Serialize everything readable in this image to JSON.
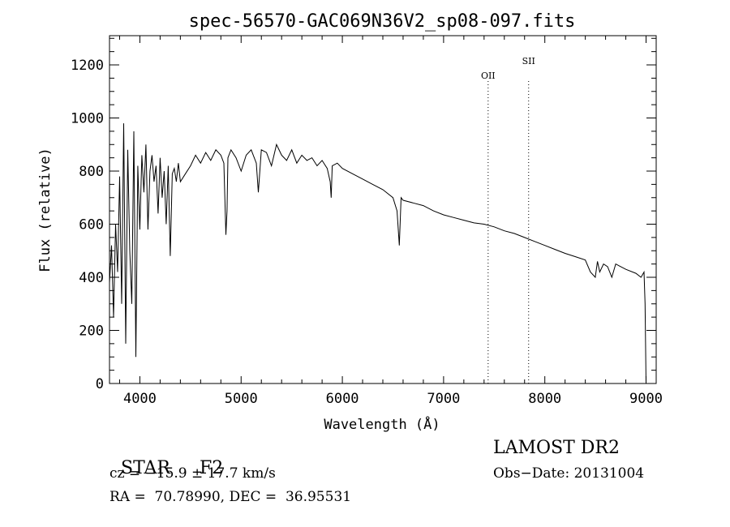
{
  "chart_data": {
    "type": "line",
    "title": "spec-56570-GAC069N36V2_sp08-097.fits",
    "xlabel": "Wavelength (Å)",
    "ylabel": "Flux (relative)",
    "xlim": [
      3700,
      9100
    ],
    "ylim": [
      0,
      1310
    ],
    "x_ticks": [
      4000,
      5000,
      6000,
      7000,
      8000,
      9000
    ],
    "y_ticks": [
      0,
      200,
      400,
      600,
      800,
      1000,
      1200
    ],
    "line_color": "#000000",
    "series": [
      {
        "x": [
          3700,
          3720,
          3740,
          3760,
          3780,
          3800,
          3820,
          3840,
          3860,
          3880,
          3900,
          3920,
          3940,
          3960,
          3980,
          4000,
          4020,
          4040,
          4060,
          4080,
          4100,
          4120,
          4140,
          4160,
          4180,
          4200,
          4220,
          4240,
          4260,
          4280,
          4300,
          4320,
          4340,
          4360,
          4380,
          4400,
          4450,
          4500,
          4550,
          4600,
          4650,
          4700,
          4750,
          4800,
          4830,
          4850,
          4861,
          4870,
          4900,
          4950,
          5000,
          5050,
          5100,
          5150,
          5170,
          5200,
          5250,
          5300,
          5350,
          5400,
          5450,
          5500,
          5550,
          5600,
          5650,
          5700,
          5750,
          5800,
          5850,
          5880,
          5890,
          5900,
          5950,
          6000,
          6100,
          6200,
          6300,
          6400,
          6500,
          6540,
          6563,
          6580,
          6600,
          6700,
          6800,
          6900,
          7000,
          7100,
          7200,
          7300,
          7400,
          7500,
          7600,
          7700,
          7800,
          7900,
          8000,
          8100,
          8200,
          8300,
          8400,
          8450,
          8498,
          8520,
          8542,
          8580,
          8620,
          8662,
          8700,
          8800,
          8900,
          8950,
          8980,
          8990,
          9000
        ],
        "y": [
          380,
          520,
          250,
          600,
          420,
          780,
          300,
          980,
          150,
          880,
          500,
          300,
          950,
          100,
          820,
          580,
          860,
          720,
          900,
          580,
          800,
          860,
          760,
          820,
          640,
          850,
          700,
          800,
          600,
          820,
          480,
          790,
          810,
          760,
          830,
          760,
          790,
          820,
          860,
          830,
          870,
          840,
          880,
          860,
          830,
          560,
          650,
          850,
          880,
          850,
          800,
          860,
          880,
          830,
          720,
          880,
          870,
          820,
          900,
          860,
          840,
          880,
          830,
          860,
          840,
          850,
          820,
          840,
          810,
          760,
          700,
          820,
          830,
          810,
          790,
          770,
          750,
          730,
          700,
          650,
          520,
          700,
          690,
          680,
          670,
          650,
          635,
          625,
          615,
          605,
          600,
          590,
          575,
          565,
          550,
          535,
          520,
          505,
          490,
          478,
          465,
          420,
          400,
          460,
          420,
          450,
          440,
          400,
          450,
          430,
          415,
          400,
          420,
          300,
          0
        ]
      }
    ],
    "annotations": [
      {
        "label": "OII",
        "x": 7440
      },
      {
        "label": "SII",
        "x": 7840
      }
    ]
  },
  "info": {
    "object_type": "STAR",
    "subclass": "F2",
    "survey": "LAMOST DR2",
    "cz_text": "cz = −15.9 ± 17.7 km/s",
    "obs_date": "Obs−Date: 20131004",
    "radec": "RA =  70.78990, DEC =  36.95531"
  }
}
